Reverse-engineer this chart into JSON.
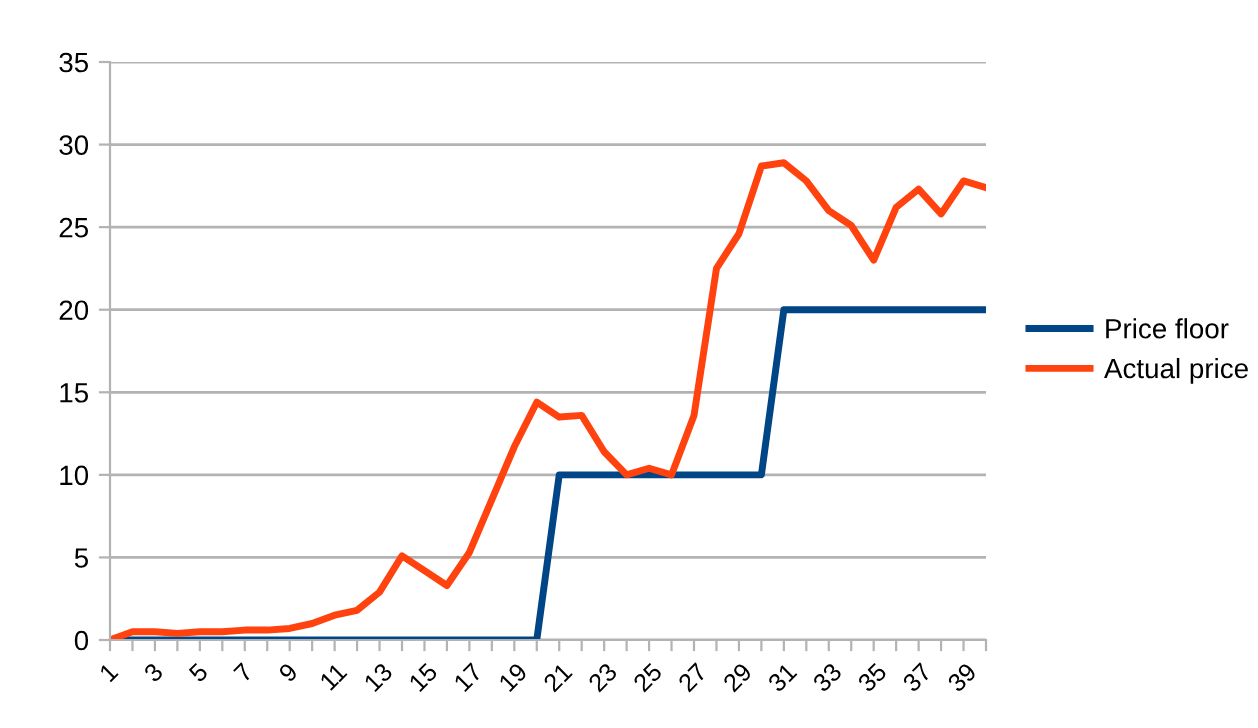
{
  "chart_data": {
    "type": "line",
    "categories": [
      "1",
      null,
      "3",
      null,
      "5",
      null,
      "7",
      null,
      "9",
      null,
      "11",
      null,
      "13",
      null,
      "15",
      null,
      "17",
      null,
      "19",
      null,
      "21",
      null,
      "23",
      null,
      "25",
      null,
      "27",
      null,
      "29",
      null,
      "31",
      null,
      "33",
      null,
      "35",
      null,
      "37",
      null,
      "39",
      null
    ],
    "series": [
      {
        "name": "Price floor",
        "color": "#004586",
        "values": [
          0,
          0,
          0,
          0,
          0,
          0,
          0,
          0,
          0,
          0,
          0,
          0,
          0,
          0,
          0,
          0,
          0,
          0,
          0,
          0,
          10,
          10,
          10,
          10,
          10,
          10,
          10,
          10,
          10,
          10,
          20,
          20,
          20,
          20,
          20,
          20,
          20,
          20,
          20,
          20
        ]
      },
      {
        "name": "Actual price",
        "color": "#ff420e",
        "values": [
          0,
          0.5,
          0.5,
          0.4,
          0.5,
          0.5,
          0.6,
          0.6,
          0.7,
          1.0,
          1.5,
          1.8,
          2.9,
          5.1,
          4.2,
          3.3,
          5.3,
          8.5,
          11.7,
          14.4,
          13.5,
          13.6,
          11.4,
          10.0,
          10.4,
          10.0,
          13.6,
          22.5,
          24.6,
          28.7,
          28.9,
          27.8,
          26.0,
          25.1,
          23.0,
          26.2,
          27.3,
          25.8,
          27.8,
          27.4
        ]
      }
    ],
    "ylim": [
      0,
      35
    ],
    "yticks": [
      0,
      5,
      10,
      15,
      20,
      25,
      30,
      35
    ],
    "grid": "y",
    "legend": "right",
    "marker": "none",
    "line_style": "solid"
  }
}
